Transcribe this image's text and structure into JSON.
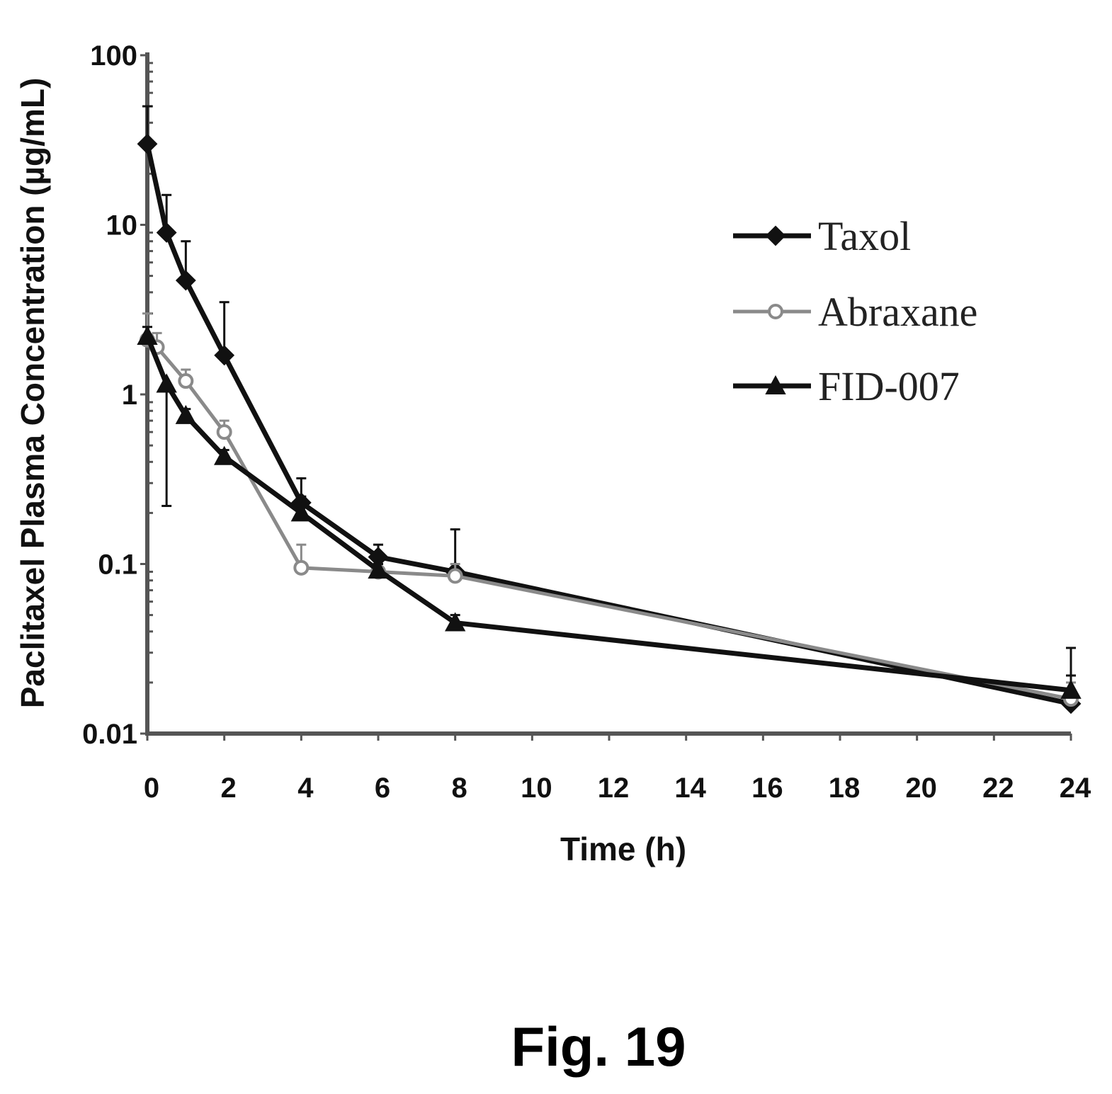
{
  "caption": "Fig. 19",
  "chart_data": {
    "type": "line",
    "title": "",
    "xlabel": "Time (h)",
    "ylabel": "Paclitaxel Plasma Concentration (µg/mL)",
    "xlim": [
      0,
      24
    ],
    "ylim": [
      0.01,
      100
    ],
    "yscale": "log",
    "xticks": [
      0,
      2,
      4,
      6,
      8,
      10,
      12,
      14,
      16,
      18,
      20,
      22,
      24
    ],
    "yticks": [
      0.01,
      0.1,
      1,
      10,
      100
    ],
    "ytick_labels": [
      "0.01",
      "0.1",
      "1",
      "10",
      "100"
    ],
    "legend_position": "top-right",
    "series": [
      {
        "name": "Taxol",
        "marker": "diamond",
        "color": "#111111",
        "x": [
          0,
          0.5,
          1,
          2,
          4,
          6,
          8,
          24
        ],
        "y": [
          30,
          9,
          4.7,
          1.7,
          0.23,
          0.11,
          0.09,
          0.015
        ],
        "err_upper": [
          50,
          15,
          8,
          3.5,
          0.32,
          0.13,
          0.16,
          0.032
        ]
      },
      {
        "name": "Abraxane",
        "marker": "circle",
        "color": "#8a8a8a",
        "x": [
          0,
          0.25,
          1,
          2,
          4,
          6,
          8,
          24
        ],
        "y": [
          2.1,
          1.9,
          1.2,
          0.6,
          0.095,
          0.09,
          0.085,
          0.016
        ],
        "err_upper": [
          3,
          2.3,
          1.4,
          0.7,
          0.13,
          0.1,
          0.1,
          0.02
        ]
      },
      {
        "name": "FID-007",
        "marker": "triangle",
        "color": "#111111",
        "x": [
          0,
          0.5,
          1,
          2,
          4,
          6,
          8,
          24
        ],
        "y": [
          2.2,
          1.15,
          0.75,
          0.43,
          0.2,
          0.092,
          0.045,
          0.018
        ],
        "err_upper": [
          2.5,
          1.15,
          0.82,
          0.47,
          0.25,
          0.1,
          0.05,
          0.022
        ],
        "err_lower": [
          2.2,
          0.22,
          0.75,
          0.43,
          0.2,
          0.092,
          0.045,
          0.018
        ]
      }
    ]
  }
}
